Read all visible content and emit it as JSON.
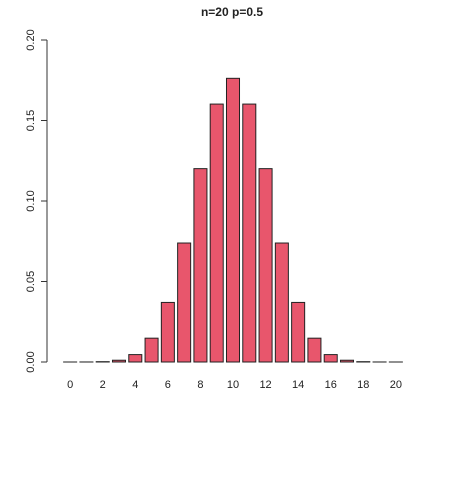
{
  "chart_data": {
    "type": "bar",
    "title": "n=20 p=0.5",
    "categories": [
      "0",
      null,
      "2",
      null,
      "4",
      null,
      "6",
      null,
      "8",
      null,
      "10",
      null,
      "12",
      null,
      "14",
      null,
      "16",
      null,
      "18",
      null,
      "20"
    ],
    "values": [
      1e-06,
      2e-05,
      0.0002,
      0.0011,
      0.0046,
      0.0148,
      0.037,
      0.0739,
      0.1201,
      0.1602,
      0.1762,
      0.1602,
      0.1201,
      0.0739,
      0.037,
      0.0148,
      0.0046,
      0.0011,
      0.0002,
      2e-05,
      1e-06
    ],
    "color": "#e8566c",
    "ylim": [
      0,
      0.2
    ],
    "yticks": [
      {
        "value": 0,
        "label": "0.00"
      },
      0.05,
      {
        "value": 0.1,
        "label": "0.10"
      },
      0.15,
      {
        "value": 0.2,
        "label": "0.20"
      }
    ],
    "grid": false
  }
}
